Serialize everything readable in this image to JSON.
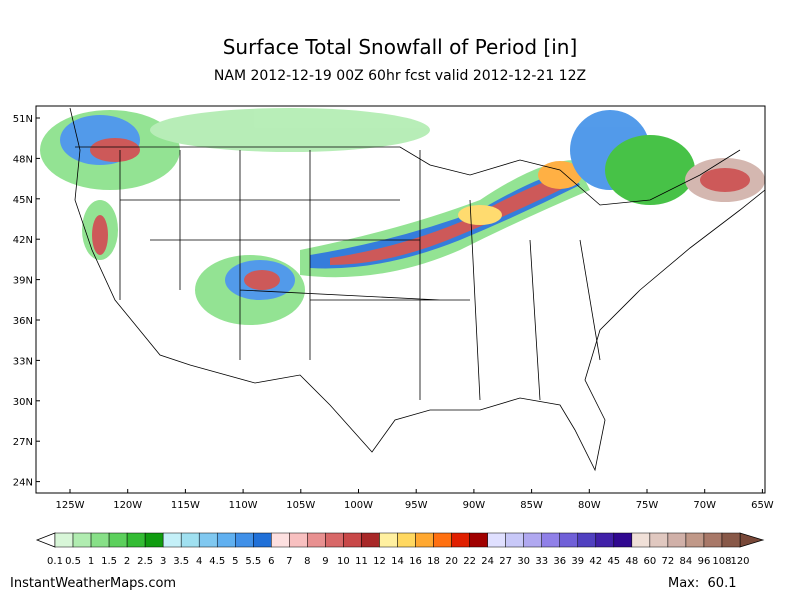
{
  "header": {
    "title": "Surface Total Snowfall of Period [in]",
    "subtitle": "NAM 2012-12-19 00Z 60hr fcst valid 2012-12-21 12Z"
  },
  "map": {
    "lat_labels": [
      "51N",
      "48N",
      "45N",
      "42N",
      "39N",
      "36N",
      "33N",
      "30N",
      "27N",
      "24N"
    ],
    "lon_labels": [
      "125W",
      "120W",
      "115W",
      "110W",
      "105W",
      "100W",
      "95W",
      "90W",
      "85W",
      "80W",
      "75W",
      "70W",
      "65W"
    ]
  },
  "colorbar": {
    "labels": [
      "0.1",
      "0.5",
      "1",
      "1.5",
      "2",
      "2.5",
      "3",
      "3.5",
      "4",
      "4.5",
      "5",
      "5.5",
      "6",
      "7",
      "8",
      "9",
      "10",
      "11",
      "12",
      "14",
      "16",
      "18",
      "20",
      "22",
      "24",
      "27",
      "30",
      "33",
      "36",
      "39",
      "42",
      "45",
      "48",
      "60",
      "72",
      "84",
      "96",
      "108",
      "120"
    ],
    "colors": [
      "#d8f6d8",
      "#b0ecb0",
      "#88e088",
      "#5cd05c",
      "#34bc34",
      "#109c10",
      "#c4f0f8",
      "#a0e0f0",
      "#80c8f0",
      "#60b0f0",
      "#4090e8",
      "#2070d8",
      "#fde0e0",
      "#f8c0c0",
      "#e89090",
      "#d86868",
      "#c84848",
      "#a82828",
      "#fff0a0",
      "#ffd860",
      "#ffa830",
      "#ff7010",
      "#e02000",
      "#a00000",
      "#e0e0ff",
      "#c8c8f8",
      "#b0a8f0",
      "#9080e8",
      "#7060d8",
      "#5040c0",
      "#4020a8",
      "#300890",
      "#f0e0d8",
      "#e0c8c0",
      "#d0b0a8",
      "#c09888",
      "#a87868",
      "#885848"
    ]
  },
  "footer": {
    "source": "InstantWeatherMaps.com",
    "max": "Max:  60.1"
  }
}
